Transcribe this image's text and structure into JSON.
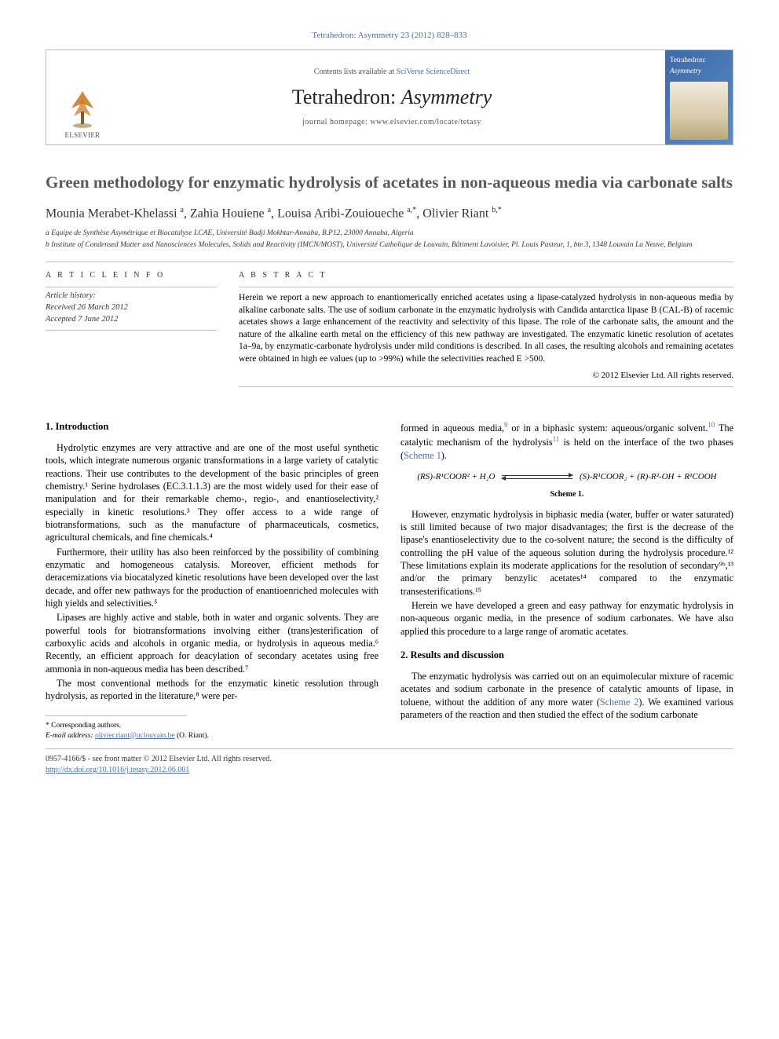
{
  "header": {
    "citation": "Tetrahedron: Asymmetry 23 (2012) 828–833",
    "contents_prefix": "Contents lists available at ",
    "contents_link": "SciVerse ScienceDirect",
    "journal_title_a": "Tetrahedron: ",
    "journal_title_b": "Asymmetry",
    "homepage_label": "journal homepage: ",
    "homepage_url": "www.elsevier.com/locate/tetasy",
    "elsevier_label": "ELSEVIER",
    "cover_title_a": "Tetrahedron:",
    "cover_title_b": "Asymmetry"
  },
  "article": {
    "title": "Green methodology for enzymatic hydrolysis of acetates in non-aqueous media via carbonate salts",
    "authors_html": "Mounia Merabet-Khelassi|a|, Zahia Houiene|a|, Louisa Aribi-Zouioueche|a,*|, Olivier Riant|b,*|",
    "authors": [
      {
        "name": "Mounia Merabet-Khelassi",
        "sup": "a"
      },
      {
        "name": "Zahia Houiene",
        "sup": "a"
      },
      {
        "name": "Louisa Aribi-Zouioueche",
        "sup": "a,*"
      },
      {
        "name": "Olivier Riant",
        "sup": "b,*"
      }
    ],
    "affiliations": [
      "a Equipe de Synthèse Asymétrique et Biocatalyse LCAE, Université Badji Mokhtar-Annaba, B.P12, 23000 Annaba, Algeria",
      "b Institute of Condensed Matter and Nanosciences Molecules, Solids and Reactivity (IMCN/MOST), Université Catholique de Louvain, Bâtiment Lavoisier, Pl. Louis Pasteur, 1, bte 3, 1348 Louvain La Neuve, Belgium"
    ]
  },
  "meta": {
    "info_label": "A R T I C L E   I N F O",
    "abstract_label": "A B S T R A C T",
    "history_label": "Article history:",
    "received": "Received 26 March 2012",
    "accepted": "Accepted 7 June 2012",
    "abstract": "Herein we report a new approach to enantiomerically enriched acetates using a lipase-catalyzed hydrolysis in non-aqueous media by alkaline carbonate salts. The use of sodium carbonate in the enzymatic hydrolysis with Candida antarctica lipase B (CAL-B) of racemic acetates shows a large enhancement of the reactivity and selectivity of this lipase. The role of the carbonate salts, the amount and the nature of the alkaline earth metal on the efficiency of this new pathway are investigated. The enzymatic kinetic resolution of acetates 1a–9a, by enzymatic-carbonate hydrolysis under mild conditions is described. In all cases, the resulting alcohols and remaining acetates were obtained in high ee values (up to >99%) while the selectivities reached E >500.",
    "copyright": "© 2012 Elsevier Ltd. All rights reserved."
  },
  "body": {
    "sec1_head": "1. Introduction",
    "p1": "Hydrolytic enzymes are very attractive and are one of the most useful synthetic tools, which integrate numerous organic transformations in a large variety of catalytic reactions. Their use contributes to the development of the basic principles of green chemistry.¹ Serine hydrolases (EC.3.1.1.3) are the most widely used for their ease of manipulation and for their remarkable chemo-, regio-, and enantioselectivity,² especially in kinetic resolutions.³ They offer access to a wide range of biotransformations, such as the manufacture of pharmaceuticals, cosmetics, agricultural chemicals, and fine chemicals.⁴",
    "p2": "Furthermore, their utility has also been reinforced by the possibility of combining enzymatic and homogeneous catalysis. Moreover, efficient methods for deracemizations via biocatalyzed kinetic resolutions have been developed over the last decade, and offer new pathways for the production of enantioenriched molecules with high yields and selectivities.⁵",
    "p3": "Lipases are highly active and stable, both in water and organic solvents. They are powerful tools for biotransformations involving either (trans)esterification of carboxylic acids and alcohols in organic media, or hydrolysis in aqueous media.⁶ Recently, an efficient approach for deacylation of secondary acetates using free ammonia in non-aqueous media has been described.⁷",
    "p4": "The most conventional methods for the enzymatic kinetic resolution through hydrolysis, as reported in the literature,⁸ were per-",
    "p5a": "formed in aqueous media,",
    "p5b": " or in a biphasic system: aqueous/organic solvent.",
    "p5c": " The catalytic mechanism of the hydrolysis",
    "p5d": "is held on the interface of the two phases (",
    "p5e": ").",
    "scheme1_ref": "Scheme 1",
    "scheme1_left": "(RS)-R¹COOR² + H₂O",
    "scheme1_right": "(S)-R¹COOR₂ + (R)-R²-OH + R¹COOH",
    "scheme1_cap": "Scheme 1.",
    "p6": "However, enzymatic hydrolysis in biphasic media (water, buffer or water saturated) is still limited because of two major disadvantages; the first is the decrease of the lipase's enantioselectivity due to the co-solvent nature; the second is the difficulty of controlling the pH value of the aqueous solution during the hydrolysis procedure.¹² These limitations explain its moderate applications for the resolution of secondary⁹ᵇ,¹³ and/or the primary benzylic acetates¹⁴ compared to the enzymatic transesterifications.¹⁵",
    "p7": "Herein we have developed a green and easy pathway for enzymatic hydrolysis in non-aqueous organic media, in the presence of sodium carbonates. We have also applied this procedure to a large range of aromatic acetates.",
    "sec2_head": "2. Results and discussion",
    "p8": "The enzymatic hydrolysis was carried out on an equimolecular mixture of racemic acetates and sodium carbonate in the presence of catalytic amounts of lipase, in toluene, without the addition of any more water (Scheme 2). We examined various parameters of the reaction and then studied the effect of the sodium carbonate",
    "scheme2_ref": "Scheme 2",
    "ref9": "9",
    "ref10": "10",
    "ref11": "11"
  },
  "footer": {
    "corr_label": "* Corresponding authors.",
    "email_label": "E-mail address: ",
    "email": "olivier.riant@uclouvain.be",
    "email_who": " (O. Riant).",
    "front_matter": "0957-4166/$ - see front matter © 2012 Elsevier Ltd. All rights reserved.",
    "doi": "http://dx.doi.org/10.1016/j.tetasy.2012.06.001"
  },
  "colors": {
    "link": "#4a6fa8",
    "rule": "#bdbdbd",
    "title": "#5a5a5a",
    "cover_grad_a": "#3d6aa8",
    "cover_grad_b": "#5a8bc4"
  }
}
